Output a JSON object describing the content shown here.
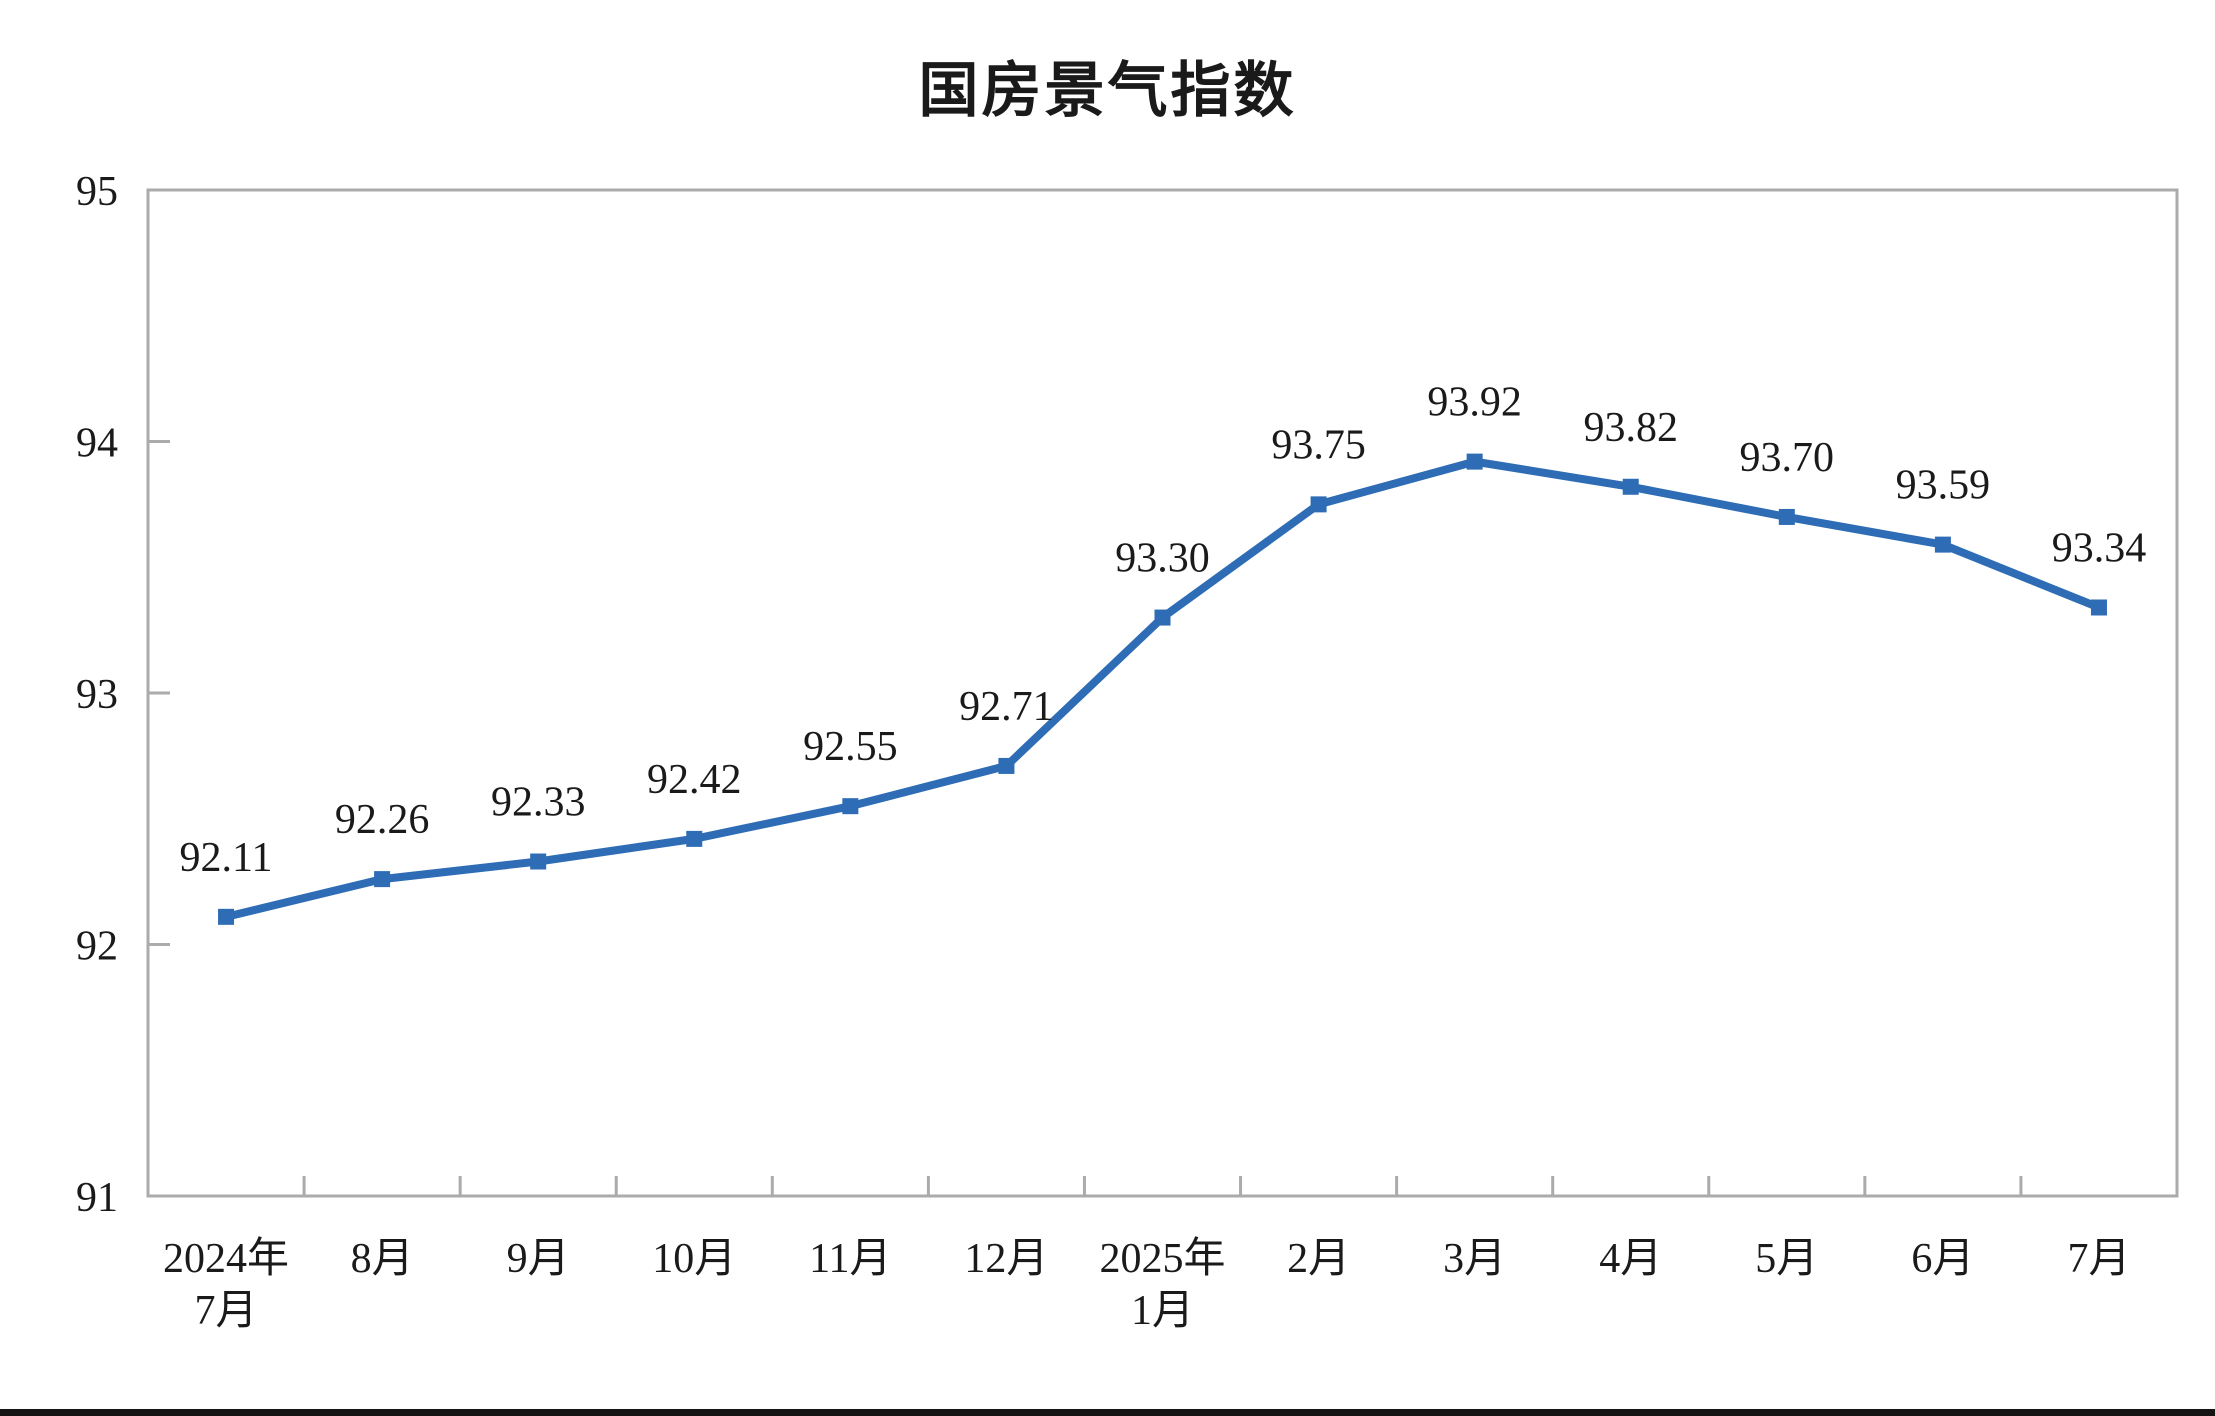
{
  "chart_data": {
    "type": "line",
    "title": "国房景气指数",
    "categories": [
      "2024年\n7月",
      "8月",
      "9月",
      "10月",
      "11月",
      "12月",
      "2025年\n1月",
      "2月",
      "3月",
      "4月",
      "5月",
      "6月",
      "7月"
    ],
    "values": [
      92.11,
      92.26,
      92.33,
      92.42,
      92.55,
      92.71,
      93.3,
      93.75,
      93.92,
      93.82,
      93.7,
      93.59,
      93.34
    ],
    "data_labels": [
      "92.11",
      "92.26",
      "92.33",
      "92.42",
      "92.55",
      "92.71",
      "93.30",
      "93.75",
      "93.92",
      "93.82",
      "93.70",
      "93.59",
      "93.34"
    ],
    "ylim": [
      91,
      95
    ],
    "yticks": [
      91,
      92,
      93,
      94,
      95
    ],
    "ytick_labels": [
      "91",
      "92",
      "93",
      "94",
      "95"
    ],
    "grid": false,
    "legend": false,
    "line_color": "#2e6cb5",
    "marker": "square",
    "axis_color": "#ababab",
    "text_color": "#1a1a1a",
    "bottom_bar_color": "#141414"
  }
}
